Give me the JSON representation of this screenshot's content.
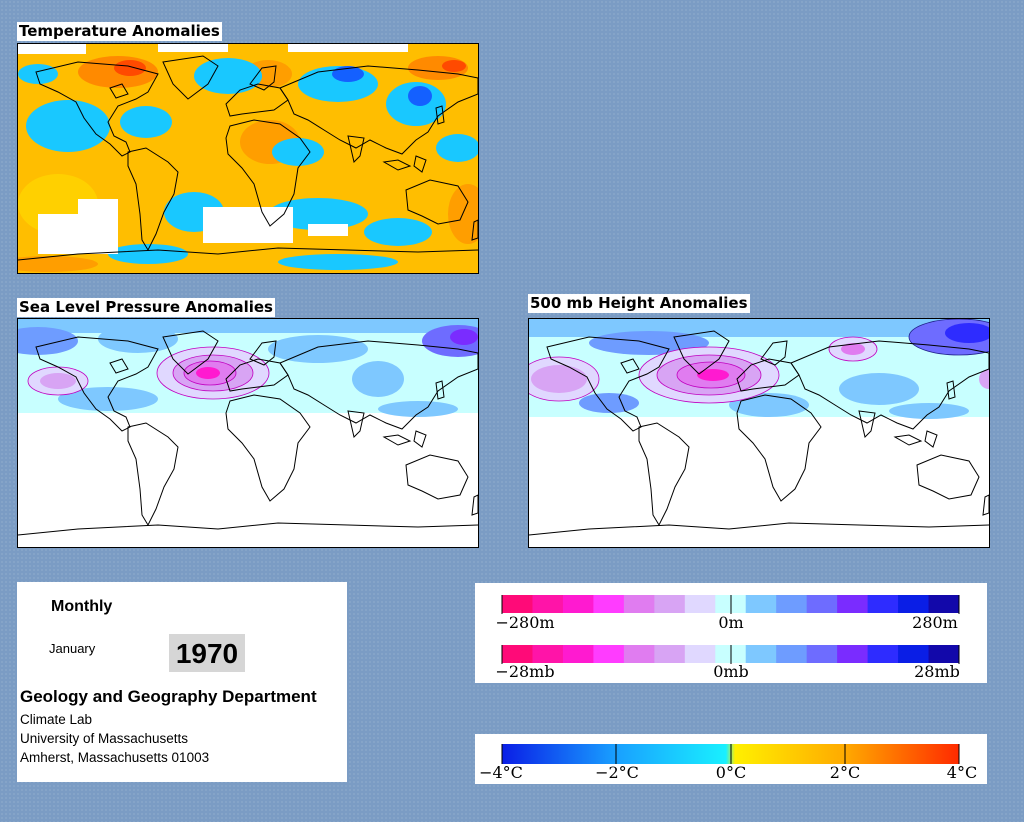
{
  "panels": {
    "temperature": {
      "title": "Temperature Anomalies"
    },
    "slp": {
      "title": "Sea Level Pressure Anomalies"
    },
    "height500": {
      "title": "500 mb Height Anomalies"
    }
  },
  "info": {
    "period": "Monthly",
    "month": "January",
    "year": "1970",
    "department": "Geology and Geography Department",
    "lab": "Climate Lab",
    "university": "University of Massachusetts",
    "address": "Amherst, Massachusetts 01003"
  },
  "legends": {
    "height": {
      "labels": [
        "−280m",
        "0m",
        "280m"
      ],
      "colors": [
        "#ff0a78",
        "#ff14a8",
        "#ff1ad0",
        "#ff3cff",
        "#e07cf0",
        "#d8a4f4",
        "#e0d8ff",
        "#c8ffff",
        "#7ec8ff",
        "#6e9cff",
        "#6e6cff",
        "#7a2cff",
        "#2e2cff",
        "#0a1ee6",
        "#1208aa"
      ]
    },
    "pressure": {
      "labels": [
        "−28mb",
        "0mb",
        "28mb"
      ],
      "colors": [
        "#ff0a78",
        "#ff14a8",
        "#ff1ad0",
        "#ff3cff",
        "#e07cf0",
        "#d8a4f4",
        "#e0d8ff",
        "#c8ffff",
        "#7ec8ff",
        "#6e9cff",
        "#6e6cff",
        "#7a2cff",
        "#2e2cff",
        "#0a1ee6",
        "#1208aa"
      ]
    },
    "temperature": {
      "labels": [
        "−4°C",
        "−2°C",
        "0°C",
        "2°C",
        "4°C"
      ]
    }
  },
  "palette": {
    "background": "#7b9cc4",
    "temp_warm": "#ffbe00",
    "temp_hot": "#ff6a00",
    "temp_cool": "#19c8ff",
    "temp_cold": "#1460ff",
    "pressure_neutral": "#c8ffff",
    "pressure_low": "#6e9cff",
    "pressure_high": "#e07cf0"
  }
}
